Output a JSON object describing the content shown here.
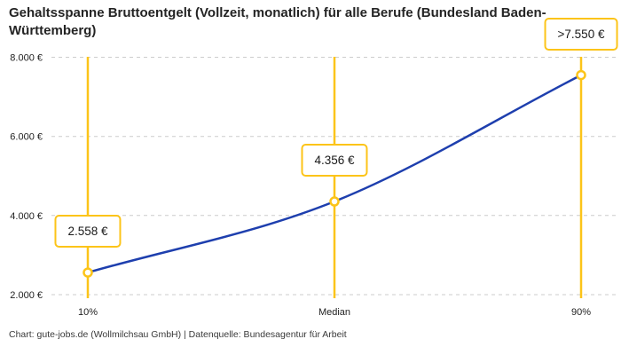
{
  "chart_data": {
    "type": "line",
    "title": "Gehaltsspanne Bruttoentgelt (Vollzeit, monatlich) für alle Berufe (Bundesland Baden-Württemberg)",
    "categories": [
      "10%",
      "Median",
      "90%"
    ],
    "values": [
      2558,
      4356,
      7550
    ],
    "value_labels": [
      "2.558 €",
      "4.356 €",
      ">7.550 €"
    ],
    "y_ticks": {
      "values": [
        2000,
        4000,
        6000,
        8000
      ],
      "labels": [
        "2.000 €",
        "4.000 €",
        "6.000 €",
        "8.000 €"
      ]
    },
    "ylim": [
      2000,
      8000
    ],
    "xlabel": "",
    "ylabel": "",
    "grid": "horizontal-dashed",
    "legend": "none",
    "colors": {
      "line": "#1e3fae",
      "marker_ring": "#fcc419",
      "marker_fill": "#ffffff",
      "category_line": "#fcc419",
      "label_border": "#fcc419",
      "grid": "#cccccc",
      "text": "#222222"
    }
  },
  "footer": {
    "credit": "Chart: gute-jobs.de (Wollmilchsau GmbH) | Datenquelle: Bundesagentur für Arbeit"
  }
}
